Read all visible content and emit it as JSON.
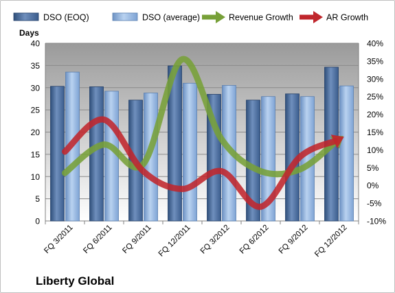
{
  "company_label": "Liberty Global",
  "chart_data": {
    "type": "bar",
    "title": "",
    "xlabel": "",
    "ylabel": "Days",
    "y2label": "",
    "ylim": [
      0,
      40
    ],
    "y2lim": [
      -10,
      40
    ],
    "y_ticks": [
      "0",
      "5",
      "10",
      "15",
      "20",
      "25",
      "30",
      "35",
      "40"
    ],
    "y2_ticks": [
      "-10%",
      "-5%",
      "0%",
      "5%",
      "10%",
      "15%",
      "20%",
      "25%",
      "30%",
      "35%",
      "40%"
    ],
    "grid": true,
    "legend_position": "top",
    "categories": [
      "FQ 3/2011",
      "FQ 6/2011",
      "FQ 9/2011",
      "FQ 12/2011",
      "FQ 3/2012",
      "FQ 6/2012",
      "FQ 9/2012",
      "FQ 12/2012"
    ],
    "series": [
      {
        "name": "DSO (EOQ)",
        "kind": "bar",
        "axis": "left",
        "color": "#4a6c9b",
        "values": [
          30.3,
          30.2,
          27.2,
          34.9,
          28.5,
          27.2,
          28.6,
          34.6
        ]
      },
      {
        "name": "DSO (average)",
        "kind": "bar",
        "axis": "left",
        "color": "#8db3e2",
        "values": [
          33.5,
          29.2,
          28.8,
          31.0,
          30.5,
          28.0,
          28.0,
          30.4
        ]
      },
      {
        "name": "Revenue Growth",
        "kind": "line",
        "axis": "right",
        "color": "#77a038",
        "values": [
          3.5,
          11.5,
          6.0,
          35.5,
          13.0,
          4.0,
          4.5,
          13.0
        ]
      },
      {
        "name": "AR Growth",
        "kind": "line",
        "axis": "right",
        "color": "#c0262c",
        "values": [
          9.5,
          18.5,
          4.0,
          -1.0,
          4.0,
          -6.0,
          8.0,
          13.0
        ]
      }
    ]
  }
}
